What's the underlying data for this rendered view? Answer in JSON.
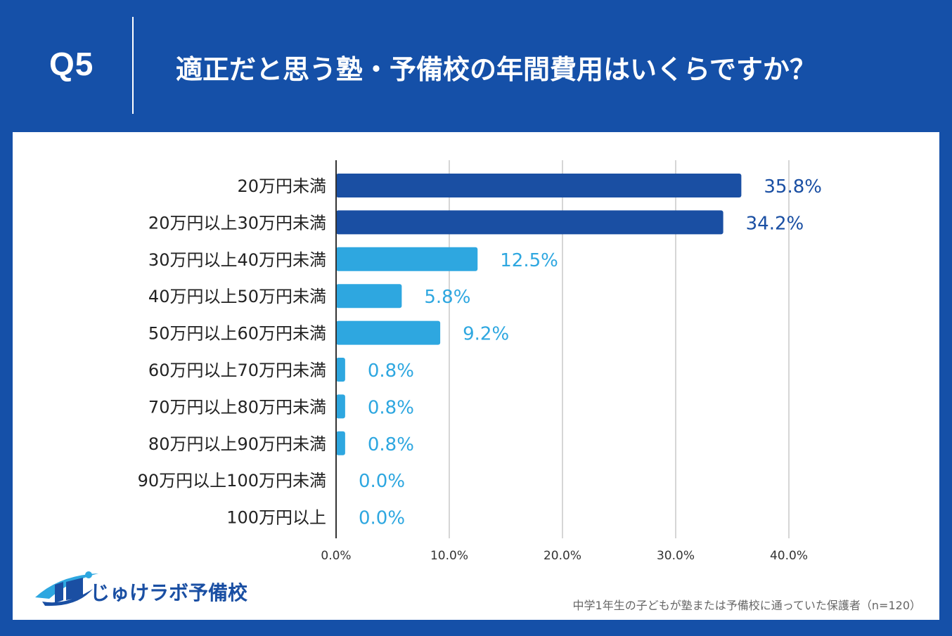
{
  "header": {
    "question_number": "Q5",
    "title": "適正だと思う塾・予備校の年間費用はいくらですか？"
  },
  "chart_data": {
    "type": "bar",
    "orientation": "horizontal",
    "title": "適正だと思う塾・予備校の年間費用はいくらですか？",
    "categories": [
      "20万円未満",
      "20万円以上30万円未満",
      "30万円以上40万円未満",
      "40万円以上50万円未満",
      "50万円以上60万円未満",
      "60万円以上70万円未満",
      "70万円以上80万円未満",
      "80万円以上90万円未満",
      "90万円以上100万円未満",
      "100万円以上"
    ],
    "values": [
      35.8,
      34.2,
      12.5,
      5.8,
      9.2,
      0.8,
      0.8,
      0.8,
      0.0,
      0.0
    ],
    "value_labels": [
      "35.8%",
      "34.2%",
      "12.5%",
      "5.8%",
      "9.2%",
      "0.8%",
      "0.8%",
      "0.8%",
      "0.0%",
      "0.0%"
    ],
    "highlight": [
      true,
      true,
      false,
      false,
      false,
      false,
      false,
      false,
      false,
      false
    ],
    "colors": {
      "highlight": "#1a4fa3",
      "normal": "#2ea7e0",
      "grid": "#c8c8c8",
      "axis": "#333333"
    },
    "xlim": [
      0,
      40
    ],
    "xticks": [
      0,
      10,
      20,
      30,
      40
    ],
    "xtick_labels": [
      "0.0%",
      "10.0%",
      "20.0%",
      "30.0%",
      "40.0%"
    ],
    "xlabel": "",
    "ylabel": "",
    "grid": true
  },
  "logo": {
    "text": "じゅけラボ予備校"
  },
  "footnote": "中学1年生の子どもが塾または予備校に通っていた保護者（n=120）"
}
